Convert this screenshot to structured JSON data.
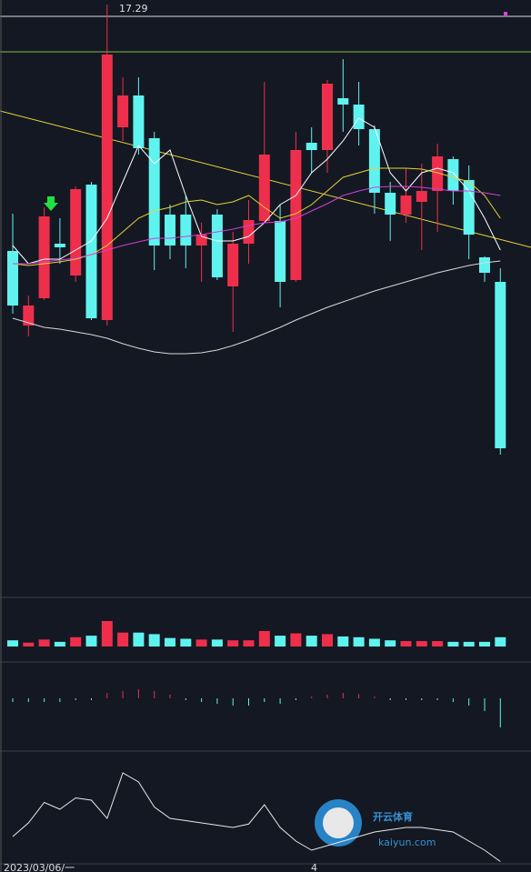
{
  "chart_data": {
    "type": "candlestick",
    "up_color": "#ee2f4c",
    "down_color": "#5ff3f0",
    "ylim": [
      10.79,
      17.34
    ],
    "max_label": 17.29,
    "open": [
      14.58,
      13.76,
      14.06,
      14.66,
      14.31,
      15.31,
      13.82,
      15.94,
      16.29,
      15.82,
      14.98,
      14.98,
      14.64,
      14.98,
      14.19,
      14.66,
      14.91,
      14.91,
      14.26,
      15.77,
      15.69,
      16.26,
      16.19,
      15.92,
      15.22,
      14.98,
      15.12,
      15.24,
      15.59,
      15.36,
      14.51,
      14.24
    ],
    "close": [
      13.98,
      13.98,
      14.96,
      14.62,
      15.26,
      13.84,
      16.74,
      16.29,
      15.71,
      14.64,
      14.64,
      14.64,
      14.76,
      14.29,
      14.66,
      14.92,
      15.64,
      14.24,
      15.69,
      15.69,
      16.42,
      16.19,
      15.92,
      15.22,
      14.98,
      15.19,
      15.24,
      15.62,
      15.24,
      14.76,
      14.34,
      12.41
    ],
    "high": [
      14.99,
      14.09,
      15.06,
      14.94,
      15.29,
      15.34,
      17.29,
      16.49,
      16.49,
      15.89,
      15.09,
      15.19,
      14.89,
      15.04,
      14.79,
      15.14,
      16.44,
      15.09,
      15.89,
      15.94,
      16.46,
      16.69,
      16.44,
      15.96,
      15.34,
      15.49,
      15.54,
      15.76,
      15.62,
      15.52,
      14.52,
      14.39
    ],
    "low": [
      13.89,
      13.64,
      14.04,
      14.44,
      14.24,
      13.82,
      13.76,
      15.79,
      15.64,
      14.37,
      14.49,
      14.39,
      14.24,
      14.26,
      13.69,
      14.44,
      14.89,
      13.96,
      14.24,
      15.44,
      15.44,
      15.89,
      15.74,
      14.99,
      14.69,
      14.89,
      14.59,
      14.79,
      15.09,
      14.49,
      14.24,
      12.34
    ],
    "lines": [
      {
        "color": "#ffffff",
        "values": [
          14.64,
          14.44,
          14.49,
          14.49,
          14.59,
          14.69,
          14.94,
          15.34,
          15.74,
          15.54,
          15.69,
          15.19,
          14.74,
          14.69,
          14.69,
          14.74,
          14.89,
          15.09,
          15.19,
          15.44,
          15.59,
          15.79,
          16.04,
          15.94,
          15.44,
          15.24,
          15.44,
          15.49,
          15.44,
          15.24,
          14.94,
          14.59
        ]
      },
      {
        "color": "#e6d33a",
        "values": [
          14.44,
          14.42,
          14.44,
          14.46,
          14.49,
          14.54,
          14.64,
          14.79,
          14.94,
          15.02,
          15.06,
          15.12,
          15.14,
          15.09,
          15.12,
          15.19,
          15.06,
          14.94,
          14.99,
          15.09,
          15.24,
          15.39,
          15.44,
          15.49,
          15.49,
          15.49,
          15.48,
          15.44,
          15.39,
          15.34,
          15.19,
          14.94
        ]
      },
      {
        "color": "#d33fd8",
        "values": [
          14.44,
          14.44,
          14.46,
          14.48,
          14.5,
          14.54,
          14.59,
          14.64,
          14.68,
          14.72,
          14.72,
          14.74,
          14.76,
          14.79,
          14.82,
          14.86,
          14.89,
          14.9,
          14.94,
          15.02,
          15.1,
          15.19,
          15.24,
          15.28,
          15.29,
          15.29,
          15.28,
          15.26,
          15.24,
          15.24,
          15.22,
          15.19
        ]
      },
      {
        "color": "#d8d8d8",
        "values": [
          13.84,
          13.79,
          13.74,
          13.72,
          13.69,
          13.66,
          13.62,
          13.56,
          13.51,
          13.47,
          13.45,
          13.45,
          13.46,
          13.49,
          13.54,
          13.6,
          13.67,
          13.74,
          13.82,
          13.89,
          13.96,
          14.02,
          14.08,
          14.14,
          14.19,
          14.24,
          14.29,
          14.34,
          14.38,
          14.42,
          14.45,
          14.47
        ]
      }
    ],
    "volume": [
      8,
      5,
      9,
      6,
      12,
      14,
      33,
      18,
      18,
      16,
      11,
      10,
      9,
      9,
      8,
      8,
      20,
      14,
      17,
      14,
      16,
      13,
      12,
      10,
      8,
      7,
      7,
      7,
      6,
      6,
      6,
      12
    ],
    "volume_ylim": [
      0,
      60
    ],
    "macd": [
      -0.1,
      -0.1,
      -0.1,
      -0.1,
      -0.05,
      -0.05,
      0.15,
      0.2,
      0.25,
      0.2,
      0.1,
      -0.05,
      -0.1,
      -0.15,
      -0.2,
      -0.2,
      -0.1,
      -0.15,
      -0.05,
      0.05,
      0.1,
      0.15,
      0.12,
      0.05,
      -0.05,
      -0.05,
      -0.05,
      -0.05,
      -0.1,
      -0.2,
      -0.35,
      -0.8
    ],
    "macd_ylim": [
      -1,
      1
    ],
    "oscillator": [
      28,
      40,
      58,
      52,
      62,
      60,
      44,
      84,
      76,
      54,
      44,
      42,
      40,
      38,
      36,
      39,
      56,
      36,
      24,
      16,
      20,
      24,
      28,
      32,
      34,
      36,
      36,
      34,
      32,
      24,
      16,
      6
    ],
    "oscillator_ylim": [
      0,
      100
    ],
    "x_labels": [
      "2023/03/06/一",
      "4"
    ]
  },
  "watermark": {
    "brand": "开云体育",
    "site": "kaiyun.com"
  }
}
